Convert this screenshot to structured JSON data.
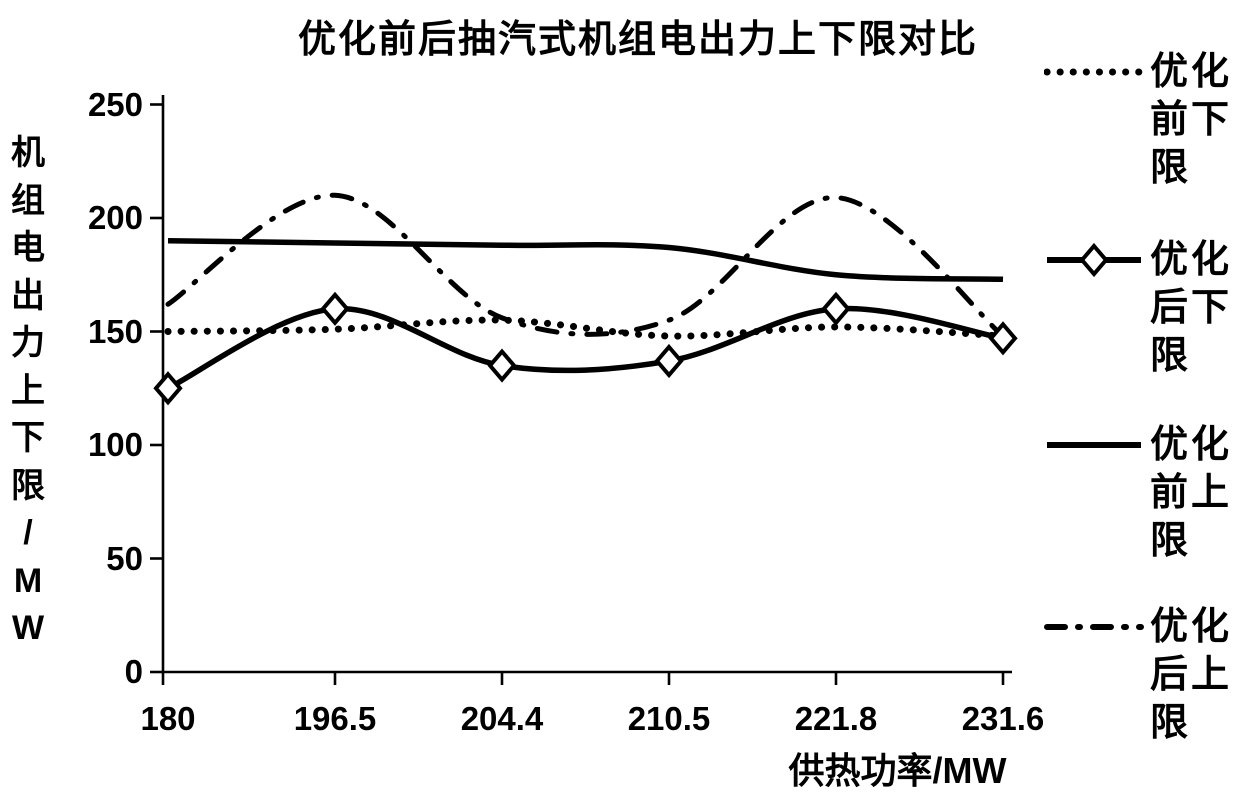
{
  "title": "优化前后抽汽式机组电出力上下限对比",
  "chart_data": {
    "type": "line",
    "title": "优化前后抽汽式机组电出力上下限对比",
    "categories": [
      "180",
      "196.5",
      "204.4",
      "210.5",
      "221.8",
      "231.6"
    ],
    "xlabel": "供热功率/MW",
    "ylabel": "机组电出力上下限/MW",
    "ylim": [
      0,
      250
    ],
    "yticks": [
      0,
      50,
      100,
      150,
      200,
      250
    ],
    "grid": false,
    "legend_position": "right",
    "series": [
      {
        "name": "优化前下限",
        "style": "dotted",
        "marker": "none",
        "values": [
          150,
          151,
          155,
          148,
          152,
          148
        ]
      },
      {
        "name": "优化后下限",
        "style": "solid",
        "marker": "diamond",
        "values": [
          125,
          160,
          135,
          137,
          160,
          147
        ]
      },
      {
        "name": "优化前上限",
        "style": "solid",
        "marker": "none",
        "values": [
          190,
          189,
          188,
          187,
          175,
          173
        ]
      },
      {
        "name": "优化后上限",
        "style": "dashdot",
        "marker": "none",
        "values": [
          162,
          210,
          156,
          155,
          209,
          148
        ]
      }
    ]
  },
  "colors": {
    "line": "#000000",
    "text": "#000000",
    "background": "#ffffff"
  }
}
